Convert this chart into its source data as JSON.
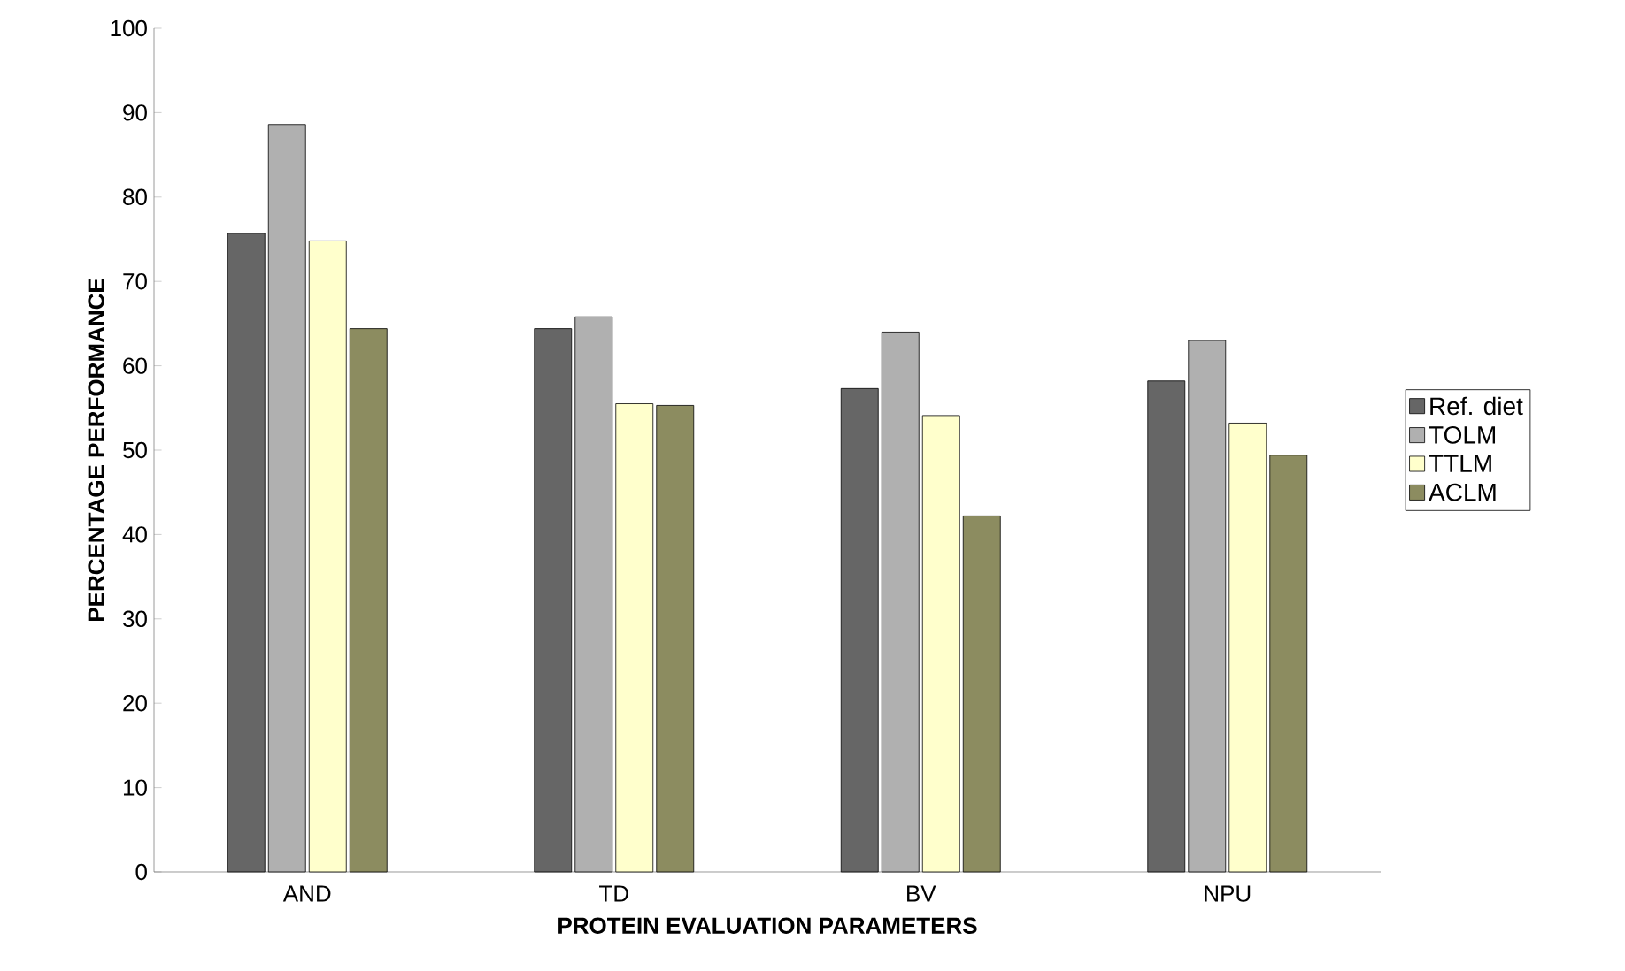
{
  "chart_data": {
    "type": "bar",
    "xlabel": "PROTEIN EVALUATION PARAMETERS",
    "ylabel": "PERCENTAGE PERFORMANCE",
    "categories": [
      "AND",
      "TD",
      "BV",
      "NPU"
    ],
    "series": [
      {
        "name": "Ref. diet",
        "color": "#666666",
        "values": [
          75.7,
          64.4,
          57.3,
          58.2
        ]
      },
      {
        "name": "TOLM",
        "color": "#b0b0b0",
        "values": [
          88.6,
          65.8,
          64.0,
          63.0
        ]
      },
      {
        "name": "TTLM",
        "color": "#ffffcc",
        "values": [
          74.8,
          55.5,
          54.1,
          53.2
        ]
      },
      {
        "name": "ACLM",
        "color": "#8c8c60",
        "values": [
          64.4,
          55.3,
          42.2,
          49.4
        ]
      }
    ],
    "ylim": [
      0,
      100
    ],
    "yticks": [
      0,
      10,
      20,
      30,
      40,
      50,
      60,
      70,
      80,
      90,
      100
    ],
    "grid": false,
    "legend": "right"
  }
}
